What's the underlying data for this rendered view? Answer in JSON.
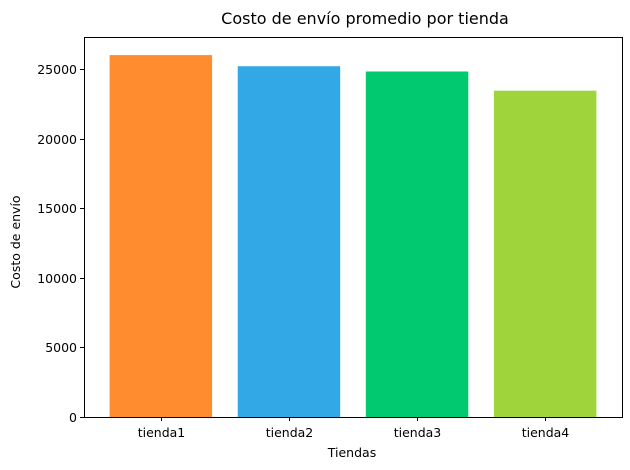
{
  "chart_data": {
    "type": "bar",
    "title": "Costo de envío promedio por tienda",
    "xlabel": "Tiendas",
    "ylabel": "Costo de envío",
    "categories": [
      "tienda1",
      "tienda2",
      "tienda3",
      "tienda4"
    ],
    "values": [
      26020,
      25220,
      24840,
      23460
    ],
    "colors": [
      "#ff8c2f",
      "#33a8e6",
      "#00c96f",
      "#9fd53b"
    ],
    "ylim": [
      0,
      27321
    ],
    "yticks": [
      0,
      5000,
      10000,
      15000,
      20000,
      25000
    ],
    "ytick_labels": [
      "0",
      "5000",
      "10000",
      "15000",
      "20000",
      "25000"
    ],
    "grid": false,
    "legend": "none"
  }
}
